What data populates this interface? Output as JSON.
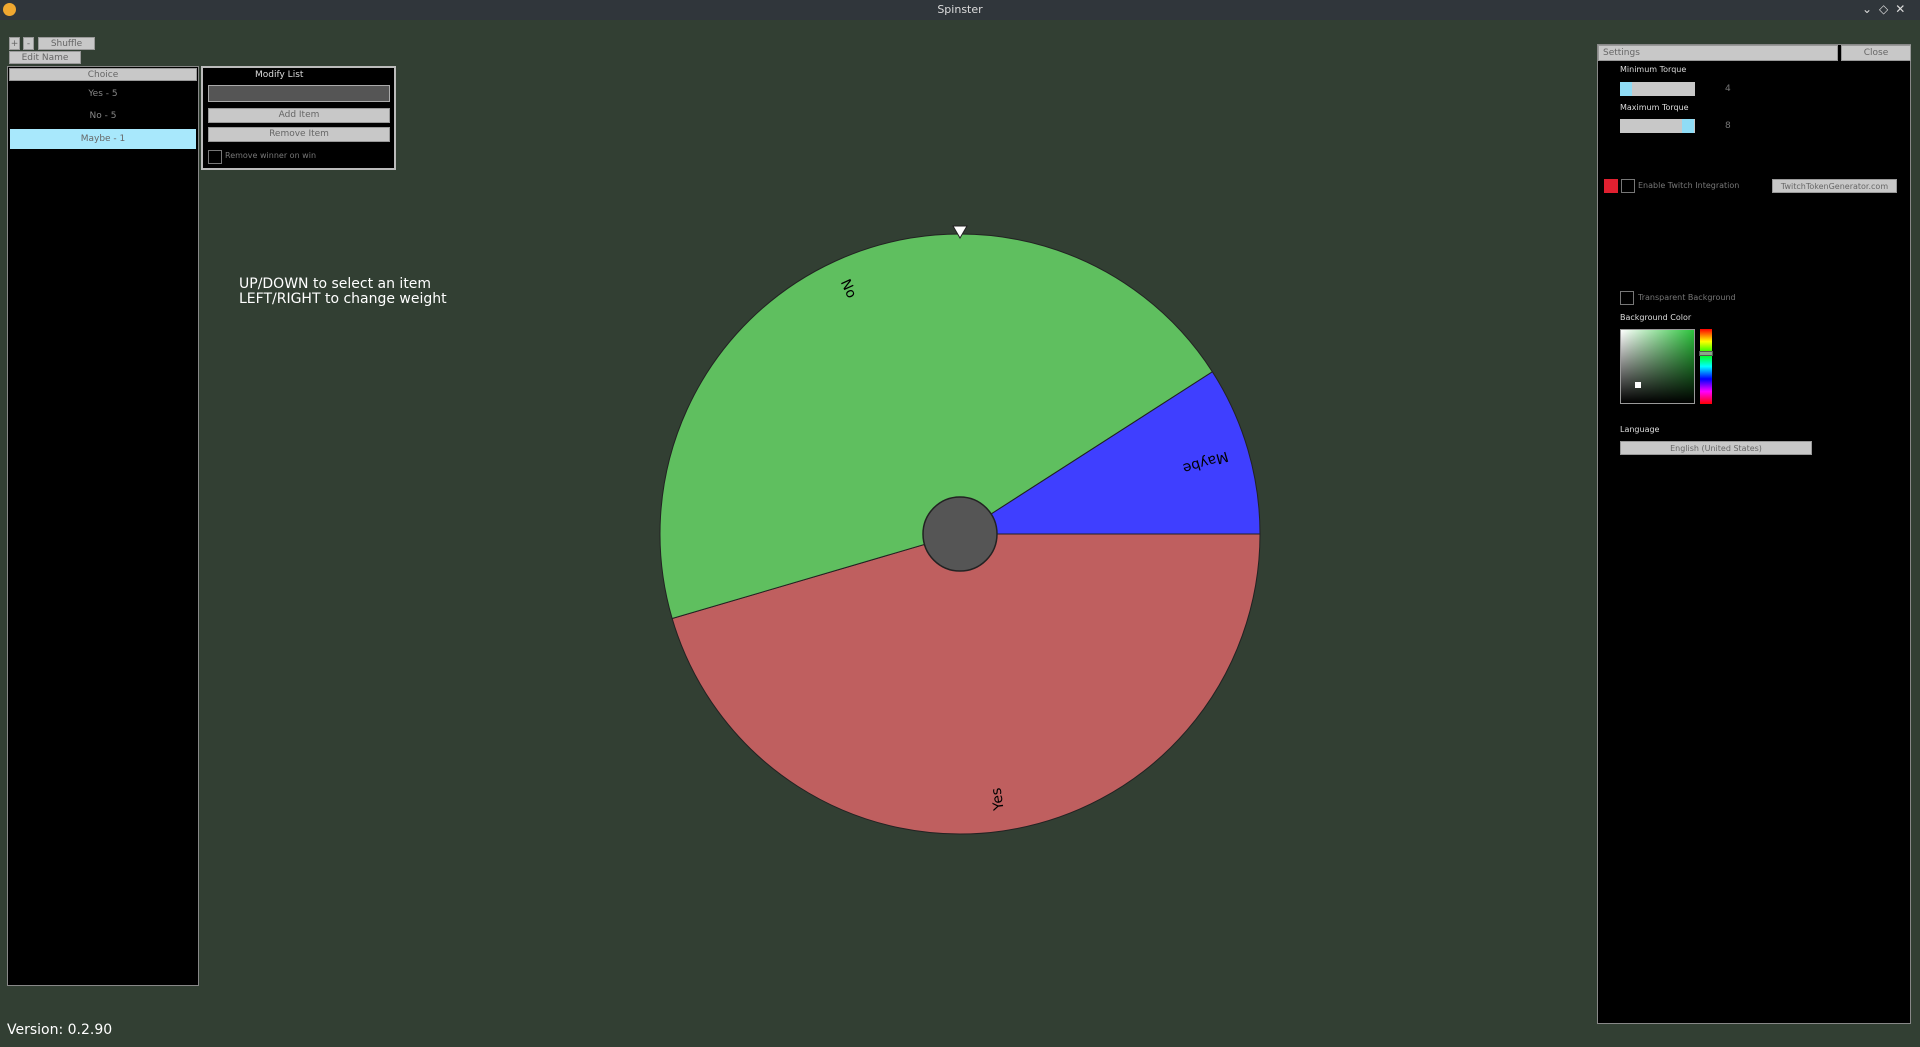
{
  "window": {
    "title": "Spinster"
  },
  "toolbar": {
    "add": "+",
    "remove": "-",
    "shuffle": "Shuffle",
    "edit_name": "Edit Name"
  },
  "list": {
    "dropdown": "Choice",
    "items": [
      "Yes - 5",
      "No - 5",
      "Maybe - 1"
    ]
  },
  "modify_list": {
    "title": "Modify List",
    "add_item": "Add Item",
    "remove_item": "Remove Item",
    "remove_winner": "Remove winner on win"
  },
  "instructions": [
    "UP/DOWN to select an item",
    "LEFT/RIGHT to change weight"
  ],
  "wheel": {
    "slices": [
      {
        "label": "Yes",
        "weight": 5,
        "color": "#bf5f5f"
      },
      {
        "label": "No",
        "weight": 5,
        "color": "#5fbf5f"
      },
      {
        "label": "Maybe",
        "weight": 1,
        "color": "#3f3fff"
      }
    ]
  },
  "settings": {
    "tab": "Settings",
    "close": "Close",
    "min_torque_label": "Minimum Torque",
    "min_torque": 4,
    "max_torque_label": "Maximum Torque",
    "max_torque": 8,
    "twitch": "Enable Twitch Integration",
    "twitch_link": "TwitchTokenGenerator.com",
    "transparent": "Transparent Background",
    "bg_color": "Background Color",
    "language_label": "Language",
    "language": "English (United States)"
  },
  "version": "Version: 0.2.90"
}
